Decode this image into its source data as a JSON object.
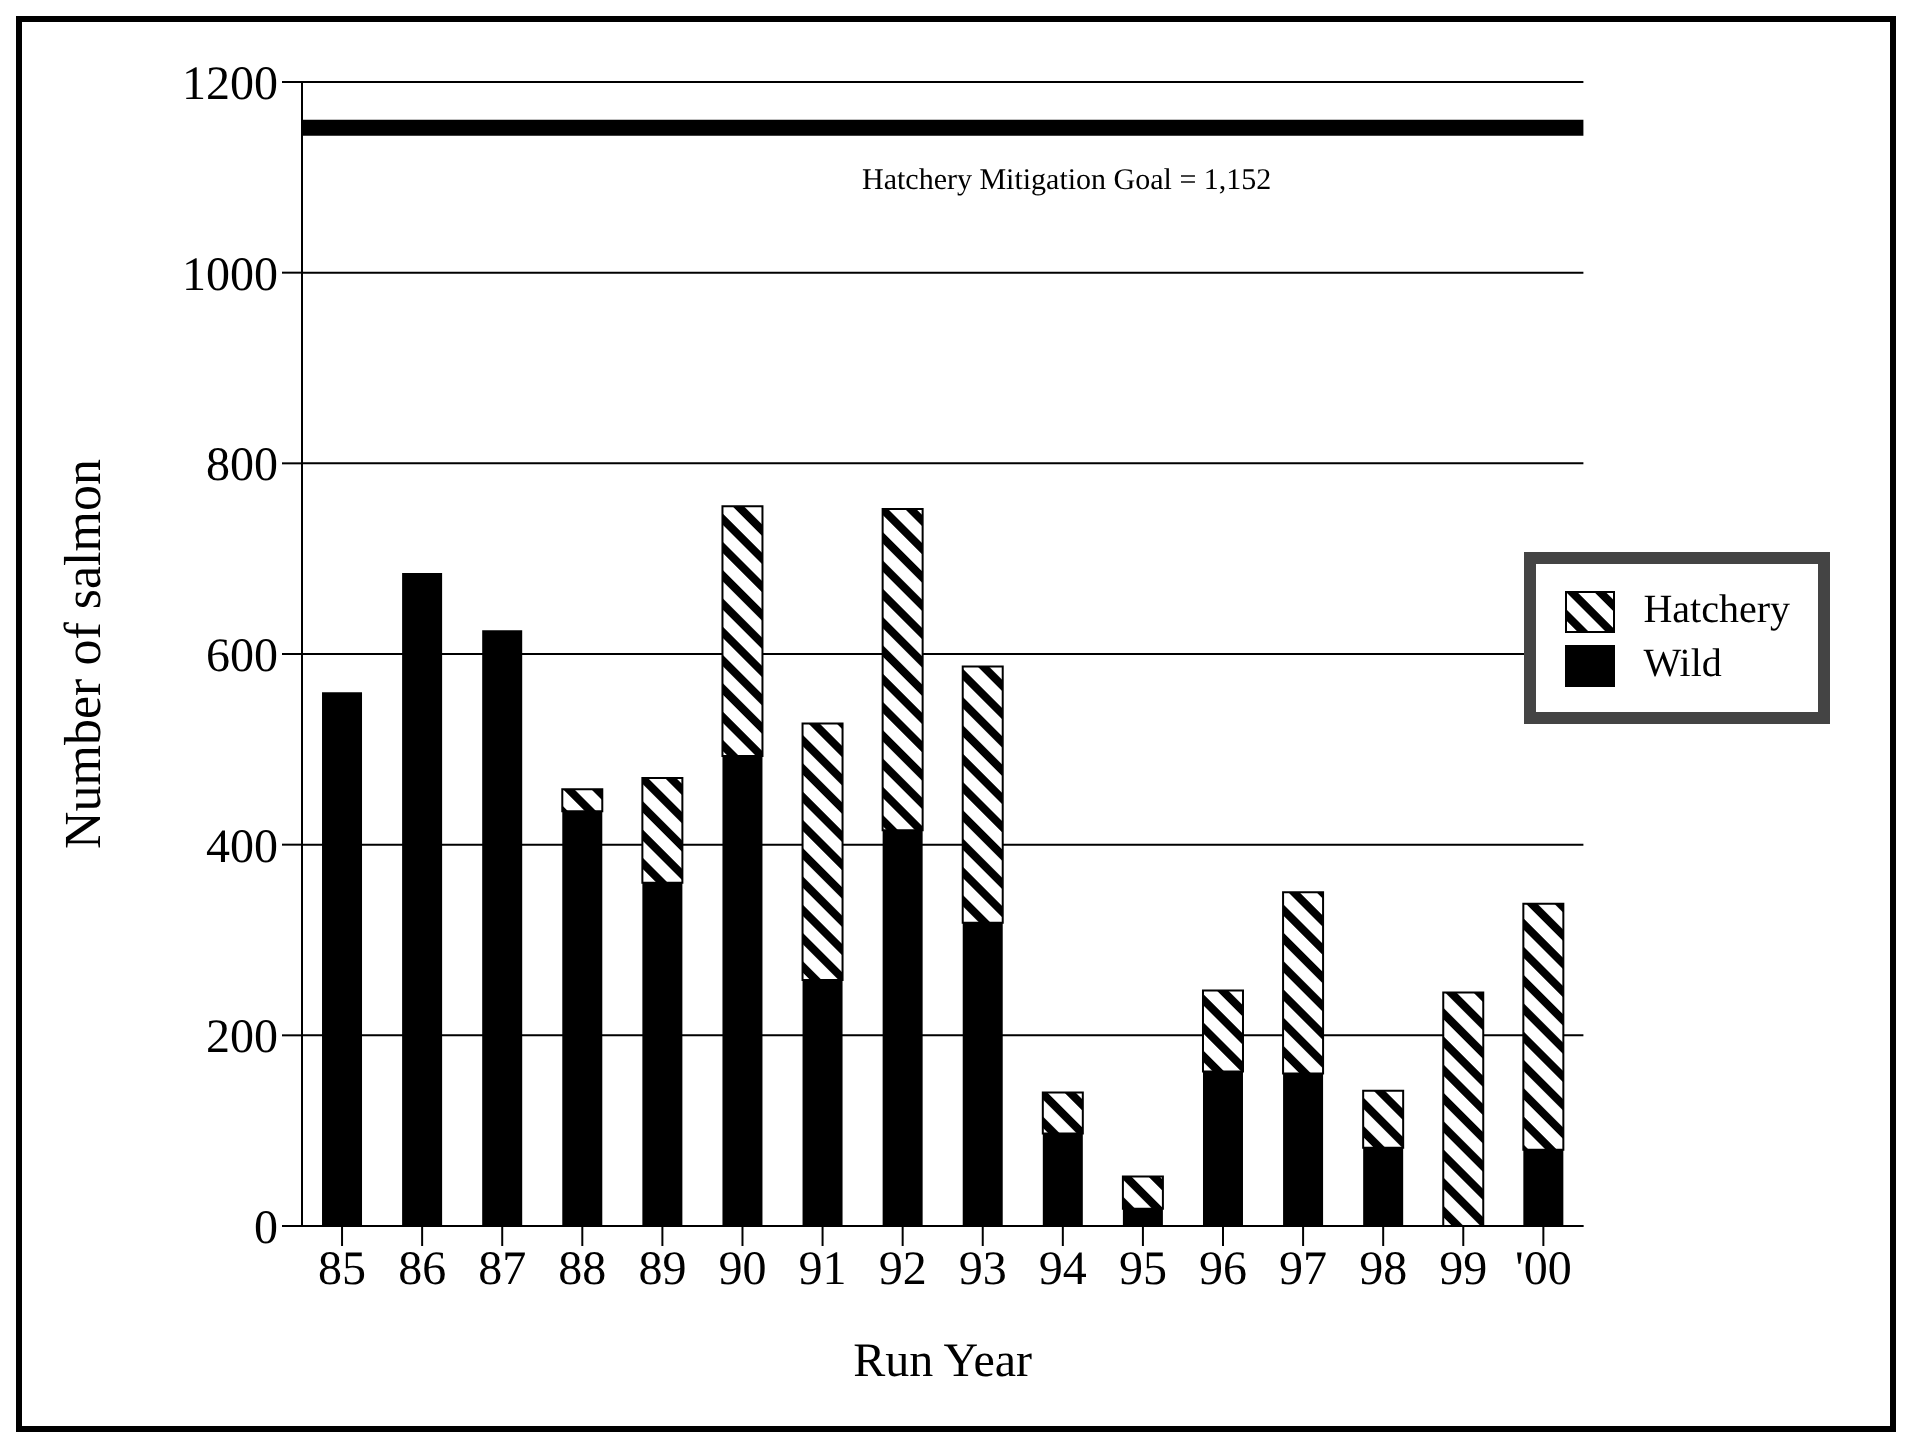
{
  "chart_data": {
    "type": "bar",
    "stacked": true,
    "xlabel": "Run Year",
    "ylabel": "Number of salmon",
    "categories": [
      "85",
      "86",
      "87",
      "88",
      "89",
      "90",
      "91",
      "92",
      "93",
      "94",
      "95",
      "96",
      "97",
      "98",
      "99",
      "'00"
    ],
    "series": [
      {
        "name": "Wild",
        "color": "#000000",
        "values": [
          560,
          685,
          625,
          435,
          360,
          493,
          258,
          415,
          318,
          97,
          18,
          162,
          160,
          82,
          0,
          80
        ]
      },
      {
        "name": "Hatchery",
        "color": "#000000",
        "values": [
          null,
          null,
          null,
          23,
          110,
          262,
          269,
          337,
          269,
          43,
          34,
          85,
          190,
          60,
          245,
          258
        ]
      }
    ],
    "ylim": [
      0,
      1200
    ],
    "yticks": [
      0,
      200,
      400,
      600,
      800,
      1000,
      1200
    ],
    "grid": "y",
    "legend": "right",
    "ref_lines": [
      {
        "axis": "y",
        "value": 1152,
        "label": "Hatchery Mitigation Goal = 1,152",
        "color": "#000000"
      }
    ]
  }
}
